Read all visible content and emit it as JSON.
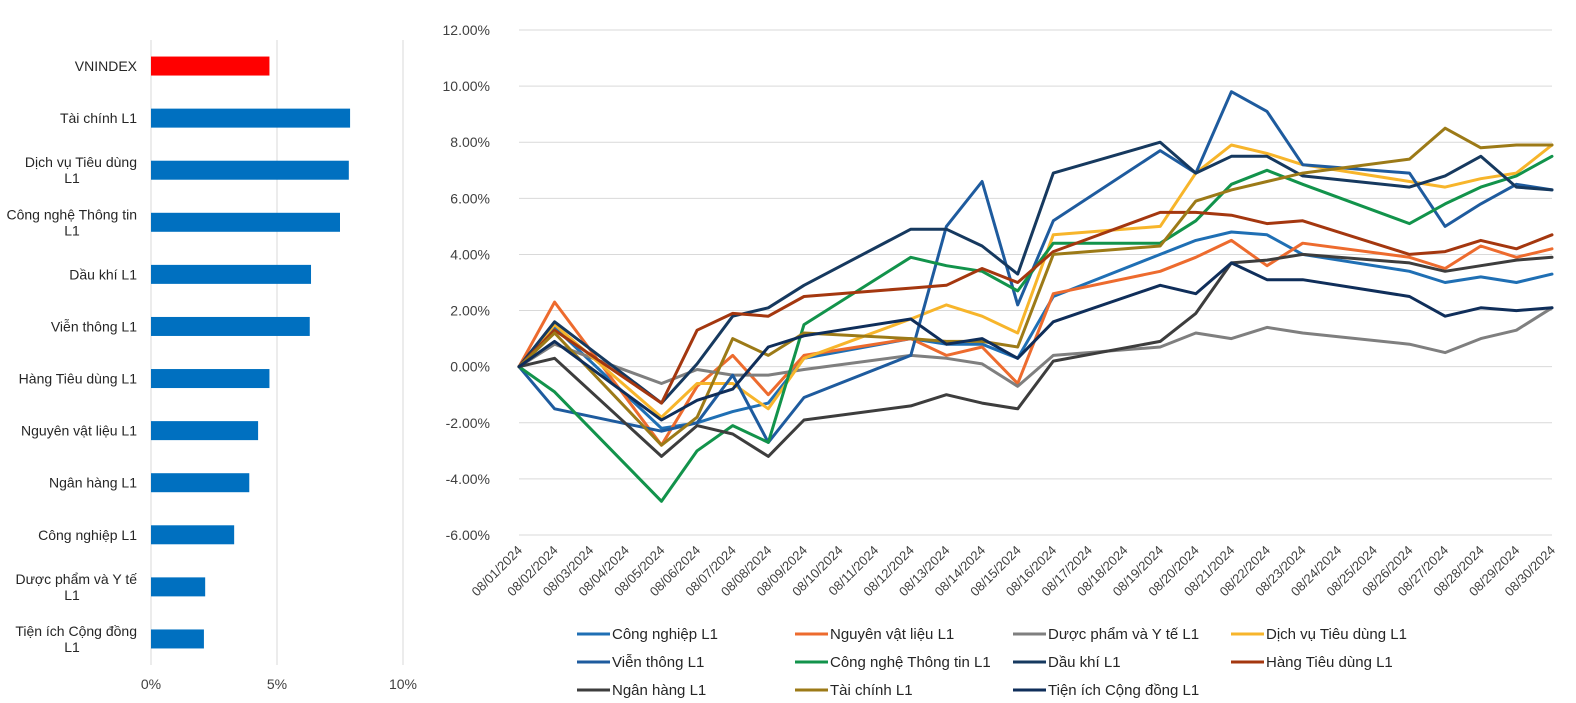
{
  "chart_data": [
    {
      "type": "bar",
      "orientation": "horizontal",
      "categories": [
        "VNINDEX",
        "Tài chính L1",
        "Dịch vụ Tiêu dùng L1",
        "Công nghệ Thông tin L1",
        "Dầu khí  L1",
        "Viễn thông L1",
        "Hàng Tiêu dùng L1",
        "Nguyên vật liệu L1",
        "Ngân hàng L1",
        "Công nghiệp L1",
        "Dược phẩm và Y tế L1",
        "Tiện ích Cộng đồng L1"
      ],
      "category_lines": [
        [
          "VNINDEX"
        ],
        [
          "Tài chính L1"
        ],
        [
          "Dịch vụ Tiêu dùng",
          "L1"
        ],
        [
          "Công nghệ Thông tin",
          "L1"
        ],
        [
          "Dầu khí  L1"
        ],
        [
          "Viễn thông L1"
        ],
        [
          "Hàng Tiêu dùng L1"
        ],
        [
          "Nguyên vật liệu L1"
        ],
        [
          "Ngân hàng L1"
        ],
        [
          "Công nghiệp L1"
        ],
        [
          "Dược phẩm và Y tế",
          "L1"
        ],
        [
          "Tiện ích Cộng đồng",
          "L1"
        ]
      ],
      "values": [
        4.7,
        7.9,
        7.85,
        7.5,
        6.35,
        6.3,
        4.7,
        4.25,
        3.9,
        3.3,
        2.15,
        2.1
      ],
      "bar_colors": [
        "#ff0000",
        "#0070c0",
        "#0070c0",
        "#0070c0",
        "#0070c0",
        "#0070c0",
        "#0070c0",
        "#0070c0",
        "#0070c0",
        "#0070c0",
        "#0070c0",
        "#0070c0"
      ],
      "xlim": [
        0,
        10
      ],
      "ticks": [
        0,
        5,
        10
      ],
      "tick_labels": [
        "0%",
        "5%",
        "10%"
      ]
    },
    {
      "type": "line",
      "x": [
        "08/01/2024",
        "08/02/2024",
        "08/03/2024",
        "08/04/2024",
        "08/05/2024",
        "08/06/2024",
        "08/07/2024",
        "08/08/2024",
        "08/09/2024",
        "08/10/2024",
        "08/11/2024",
        "08/12/2024",
        "08/13/2024",
        "08/14/2024",
        "08/15/2024",
        "08/16/2024",
        "08/17/2024",
        "08/18/2024",
        "08/19/2024",
        "08/20/2024",
        "08/21/2024",
        "08/22/2024",
        "08/23/2024",
        "08/24/2024",
        "08/25/2024",
        "08/26/2024",
        "08/27/2024",
        "08/28/2024",
        "08/29/2024",
        "08/30/2024"
      ],
      "ylim": [
        -6,
        12
      ],
      "yticks": [
        -6,
        -4,
        -2,
        0,
        2,
        4,
        6,
        8,
        10,
        12
      ],
      "ytick_labels": [
        "-6.00%",
        "-4.00%",
        "-2.00%",
        "0.00%",
        "2.00%",
        "4.00%",
        "6.00%",
        "8.00%",
        "10.00%",
        "12.00%"
      ],
      "legend_position": "bottom",
      "series": [
        {
          "name": "Công nghiệp L1",
          "color": "#1f6fb4",
          "values": [
            0,
            1.4,
            null,
            null,
            -2.2,
            -2.0,
            -1.6,
            -1.3,
            0.3,
            null,
            null,
            1.0,
            0.8,
            0.8,
            0.3,
            2.5,
            null,
            null,
            4.0,
            4.5,
            4.8,
            4.7,
            4.0,
            null,
            null,
            3.4,
            3.0,
            3.2,
            3.0,
            3.3
          ]
        },
        {
          "name": "Nguyên vật liệu L1",
          "color": "#ed6b2e",
          "values": [
            0,
            2.3,
            null,
            null,
            -2.8,
            -0.7,
            0.4,
            -1.0,
            0.4,
            null,
            null,
            1.0,
            0.4,
            0.7,
            -0.6,
            2.6,
            null,
            null,
            3.4,
            3.9,
            4.5,
            3.6,
            4.4,
            null,
            null,
            3.9,
            3.5,
            4.3,
            3.9,
            4.2
          ]
        },
        {
          "name": "Dược phẩm và Y tế L1",
          "color": "#7f7f7f",
          "values": [
            0,
            0.8,
            null,
            null,
            -0.6,
            -0.1,
            -0.3,
            -0.3,
            -0.1,
            null,
            null,
            0.4,
            0.3,
            0.1,
            -0.7,
            0.4,
            null,
            null,
            0.7,
            1.2,
            1.0,
            1.4,
            1.2,
            null,
            null,
            0.8,
            0.5,
            1.0,
            1.3,
            2.1
          ]
        },
        {
          "name": "Dịch vụ Tiêu dùng L1",
          "color": "#f7b52b",
          "values": [
            0,
            1.5,
            null,
            null,
            -1.8,
            -0.6,
            -0.6,
            -1.5,
            0.3,
            null,
            null,
            1.7,
            2.2,
            1.8,
            1.2,
            4.7,
            null,
            null,
            5.0,
            6.9,
            7.9,
            7.6,
            7.2,
            null,
            null,
            6.6,
            6.4,
            6.7,
            6.9,
            7.9
          ]
        },
        {
          "name": "Viễn thông L1",
          "color": "#1e5b9e",
          "values": [
            0,
            -1.5,
            null,
            null,
            -2.3,
            -2.0,
            -0.3,
            -2.7,
            -1.1,
            null,
            null,
            0.4,
            5.0,
            6.6,
            2.2,
            5.2,
            null,
            null,
            7.7,
            6.9,
            9.8,
            9.1,
            7.2,
            null,
            null,
            6.9,
            5.0,
            5.8,
            6.5,
            6.3
          ]
        },
        {
          "name": "Công nghệ Thông tin L1",
          "color": "#12934b",
          "values": [
            0,
            -0.9,
            null,
            null,
            -4.8,
            -3.0,
            -2.1,
            -2.7,
            1.5,
            null,
            null,
            3.9,
            3.6,
            3.4,
            2.7,
            4.4,
            null,
            null,
            4.4,
            5.2,
            6.5,
            7.0,
            6.5,
            null,
            null,
            5.1,
            5.8,
            6.4,
            6.8,
            7.5
          ]
        },
        {
          "name": "Dầu khí  L1",
          "color": "#16395f",
          "values": [
            0,
            1.6,
            null,
            null,
            -1.3,
            0.1,
            1.8,
            2.1,
            2.9,
            null,
            null,
            4.9,
            4.9,
            4.3,
            3.3,
            6.9,
            null,
            null,
            8.0,
            6.9,
            7.5,
            7.5,
            6.8,
            null,
            null,
            6.4,
            6.8,
            7.5,
            6.4,
            6.3
          ]
        },
        {
          "name": "Hàng Tiêu dùng L1",
          "color": "#a4370f",
          "values": [
            0,
            1.3,
            null,
            null,
            -1.3,
            1.3,
            1.9,
            1.8,
            2.5,
            null,
            null,
            2.8,
            2.9,
            3.5,
            3.0,
            4.1,
            null,
            null,
            5.5,
            5.5,
            5.4,
            5.1,
            5.2,
            null,
            null,
            4.0,
            4.1,
            4.5,
            4.2,
            4.7
          ]
        },
        {
          "name": "Ngân hàng L1",
          "color": "#3d3d3d",
          "values": [
            0,
            0.3,
            null,
            null,
            -3.2,
            -2.1,
            -2.4,
            -3.2,
            -1.9,
            null,
            null,
            -1.4,
            -1.0,
            -1.3,
            -1.5,
            0.2,
            null,
            null,
            0.9,
            1.9,
            3.7,
            3.8,
            4.0,
            null,
            null,
            3.7,
            3.4,
            3.6,
            3.8,
            3.9
          ]
        },
        {
          "name": "Tài chính L1",
          "color": "#9c7a17",
          "values": [
            0,
            1.2,
            null,
            null,
            -2.8,
            -1.8,
            1.0,
            0.4,
            1.2,
            null,
            null,
            1.0,
            0.9,
            0.9,
            0.7,
            4.0,
            null,
            null,
            4.3,
            5.9,
            6.3,
            6.6,
            6.9,
            null,
            null,
            7.4,
            8.5,
            7.8,
            7.9,
            7.9
          ]
        },
        {
          "name": "Tiện ích Cộng đồng L1",
          "color": "#0f2e5a",
          "values": [
            0,
            0.9,
            null,
            null,
            -1.9,
            -1.2,
            -0.8,
            0.7,
            1.1,
            null,
            null,
            1.7,
            0.8,
            1.0,
            0.3,
            1.6,
            null,
            null,
            2.9,
            2.6,
            3.7,
            3.1,
            3.1,
            null,
            null,
            2.5,
            1.8,
            2.1,
            2.0,
            2.1
          ]
        }
      ]
    }
  ]
}
